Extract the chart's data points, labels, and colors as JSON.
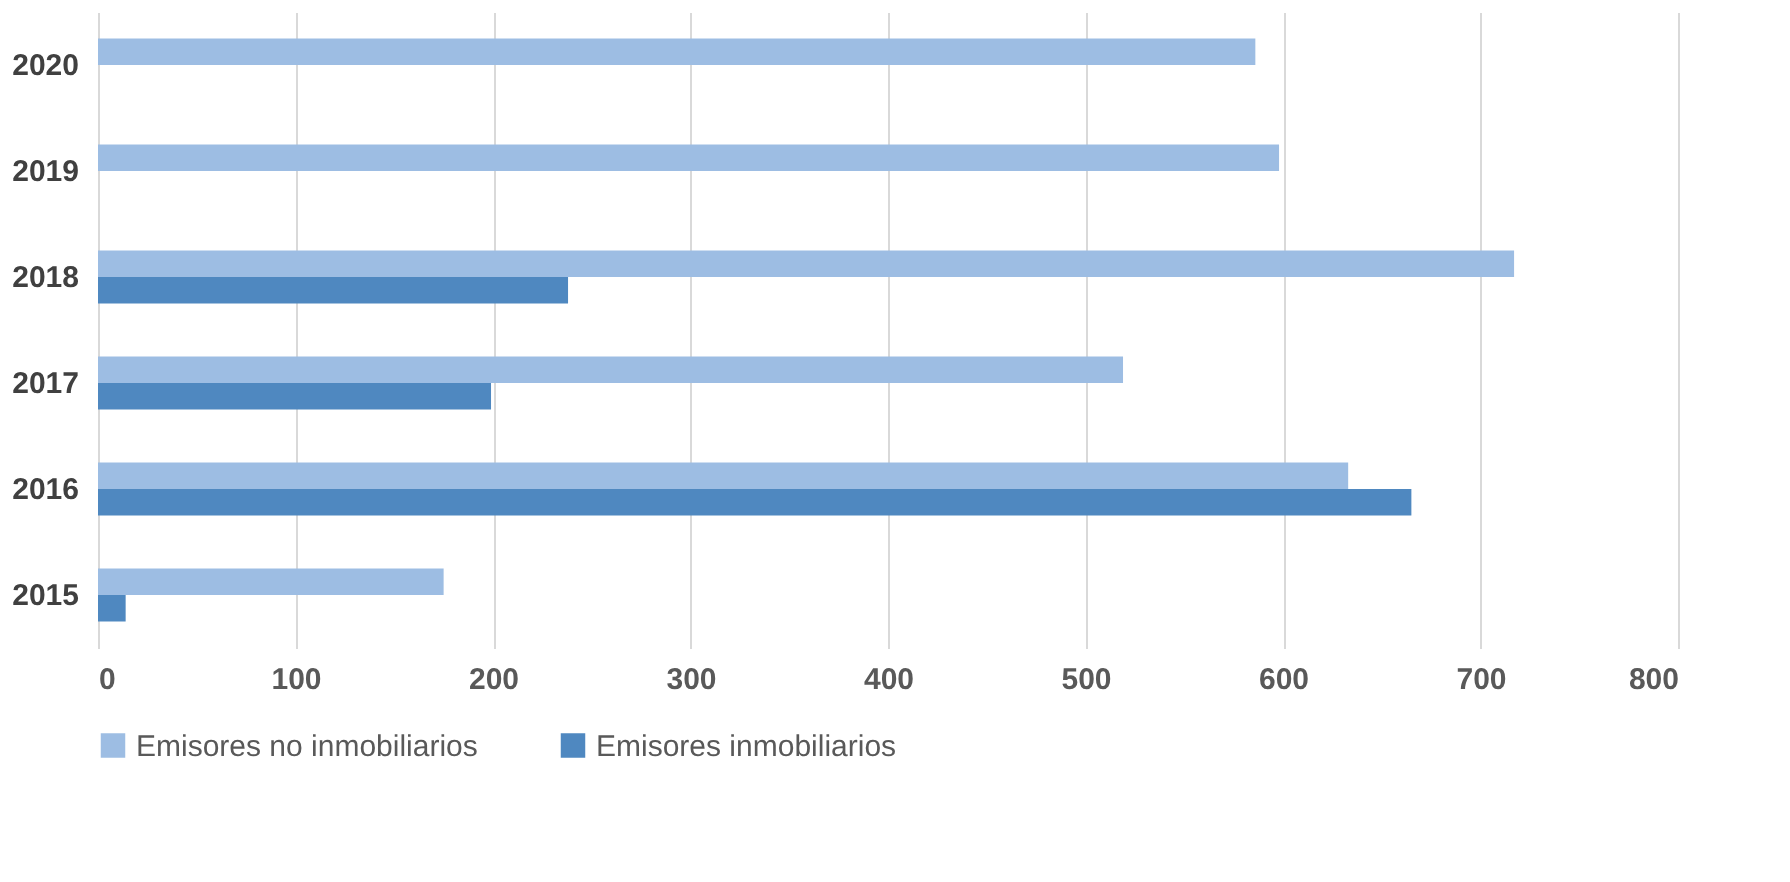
{
  "chart_data": {
    "type": "bar",
    "orientation": "horizontal",
    "categories": [
      "2020",
      "2019",
      "2018",
      "2017",
      "2016",
      "2015"
    ],
    "series": [
      {
        "name": "Emisores no inmobiliarios",
        "color": "#9dbde3",
        "values": [
          586,
          598,
          717,
          519,
          633,
          175
        ]
      },
      {
        "name": "Emisores inmobiliarios",
        "color": "#4f88c0",
        "values": [
          null,
          null,
          238,
          199,
          665,
          14
        ]
      }
    ],
    "xlim": [
      0,
      800
    ],
    "xticks": [
      0,
      100,
      200,
      300,
      400,
      500,
      600,
      700,
      800
    ],
    "grid": "x",
    "legend": "bottom"
  }
}
